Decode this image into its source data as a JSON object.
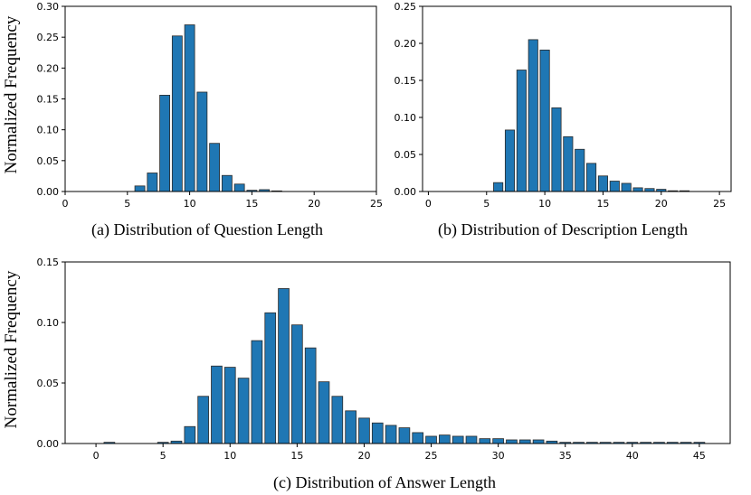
{
  "ylabel_shared": "Normalized Frequency",
  "chart_data": [
    {
      "id": "a",
      "type": "bar",
      "title": "(a) Distribution of Question Length",
      "ylabel": "Normalized Frequency",
      "xlim": [
        0,
        25
      ],
      "ylim": [
        0,
        0.3
      ],
      "xticks": [
        0,
        5,
        10,
        15,
        20,
        25
      ],
      "yticks": [
        0.0,
        0.05,
        0.1,
        0.15,
        0.2,
        0.25,
        0.3
      ],
      "x": [
        6,
        7,
        8,
        9,
        10,
        11,
        12,
        13,
        14,
        15,
        16,
        17
      ],
      "values": [
        0.009,
        0.03,
        0.156,
        0.252,
        0.27,
        0.161,
        0.078,
        0.026,
        0.012,
        0.002,
        0.003,
        0.001
      ]
    },
    {
      "id": "b",
      "type": "bar",
      "title": "(b) Distribution of Description Length",
      "ylabel": "",
      "xlim": [
        -0.5,
        26
      ],
      "ylim": [
        0,
        0.25
      ],
      "xticks": [
        0,
        5,
        10,
        15,
        20,
        25
      ],
      "yticks": [
        0.0,
        0.05,
        0.1,
        0.15,
        0.2,
        0.25
      ],
      "x": [
        5,
        6,
        7,
        8,
        9,
        10,
        11,
        12,
        13,
        14,
        15,
        16,
        17,
        18,
        19,
        20,
        21,
        22
      ],
      "values": [
        0.0,
        0.012,
        0.083,
        0.164,
        0.205,
        0.191,
        0.113,
        0.074,
        0.057,
        0.038,
        0.021,
        0.014,
        0.011,
        0.005,
        0.004,
        0.003,
        0.001,
        0.001
      ]
    },
    {
      "id": "c",
      "type": "bar",
      "title": "(c) Distribution of Answer Length",
      "ylabel": "Normalized Frequency",
      "xlim": [
        -2.3,
        47.3
      ],
      "ylim": [
        0,
        0.15
      ],
      "xticks": [
        0,
        5,
        10,
        15,
        20,
        25,
        30,
        35,
        40,
        45
      ],
      "yticks": [
        0.0,
        0.05,
        0.1,
        0.15
      ],
      "x": [
        1,
        5,
        6,
        7,
        8,
        9,
        10,
        11,
        12,
        13,
        14,
        15,
        16,
        17,
        18,
        19,
        20,
        21,
        22,
        23,
        24,
        25,
        26,
        27,
        28,
        29,
        30,
        31,
        32,
        33,
        34,
        35,
        36,
        37,
        38,
        39,
        40,
        41,
        42,
        43,
        44,
        45
      ],
      "values": [
        0.001,
        0.001,
        0.002,
        0.014,
        0.039,
        0.064,
        0.063,
        0.054,
        0.085,
        0.108,
        0.128,
        0.098,
        0.079,
        0.051,
        0.039,
        0.027,
        0.021,
        0.017,
        0.015,
        0.013,
        0.009,
        0.006,
        0.007,
        0.006,
        0.006,
        0.004,
        0.004,
        0.003,
        0.003,
        0.003,
        0.002,
        0.001,
        0.001,
        0.001,
        0.001,
        0.001,
        0.001,
        0.001,
        0.001,
        0.001,
        0.001,
        0.001
      ]
    }
  ]
}
